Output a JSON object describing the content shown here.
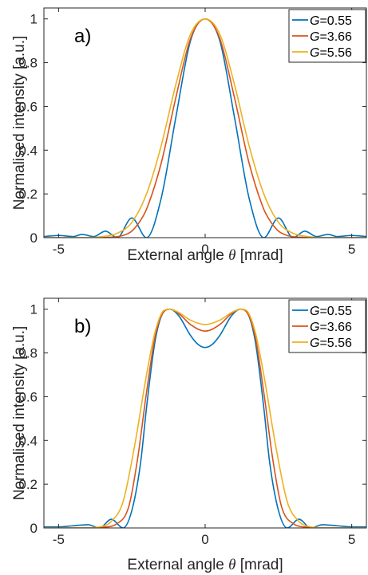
{
  "chart_data": [
    {
      "type": "line",
      "panel_label": "a)",
      "xlabel_parts": [
        "External angle ",
        "θ",
        " [mrad]"
      ],
      "ylabel": "Normalised intensity [a.u.]",
      "xlim": [
        -5.5,
        5.5
      ],
      "ylim": [
        0,
        1.05
      ],
      "xticks": [
        "-5",
        "0",
        "5"
      ],
      "yticks": [
        "0",
        "0.2",
        "0.4",
        "0.6",
        "0.8",
        "1"
      ],
      "legend_position": "top-right",
      "series": [
        {
          "name": "G=0.55",
          "legend_var": "G",
          "legend_val": "=0.55",
          "color": "#0072BD",
          "x": [
            -5.5,
            -5.0,
            -4.5,
            -4.2,
            -3.8,
            -3.4,
            -3.0,
            -2.5,
            -2.0,
            -1.5,
            -1.0,
            -0.5,
            0,
            0.5,
            1.0,
            1.5,
            2.0,
            2.5,
            3.0,
            3.4,
            3.8,
            4.2,
            4.5,
            5.0,
            5.5
          ],
          "y": [
            0.005,
            0.01,
            0.005,
            0.015,
            0.005,
            0.03,
            0.0,
            0.09,
            0.0,
            0.18,
            0.55,
            0.9,
            1.0,
            0.9,
            0.55,
            0.18,
            0.0,
            0.09,
            0.0,
            0.03,
            0.005,
            0.015,
            0.005,
            0.01,
            0.005
          ]
        },
        {
          "name": "G=3.66",
          "legend_var": "G",
          "legend_val": "=3.66",
          "color": "#D95319",
          "x": [
            -5.5,
            -4.0,
            -3.2,
            -2.8,
            -2.5,
            -2.2,
            -2.0,
            -1.5,
            -1.0,
            -0.5,
            0,
            0.5,
            1.0,
            1.5,
            2.0,
            2.2,
            2.5,
            2.8,
            3.2,
            4.0,
            5.5
          ],
          "y": [
            0.0,
            0.0,
            0.002,
            0.01,
            0.03,
            0.08,
            0.13,
            0.34,
            0.64,
            0.91,
            1.0,
            0.91,
            0.64,
            0.34,
            0.13,
            0.08,
            0.03,
            0.01,
            0.002,
            0.0,
            0.0
          ]
        },
        {
          "name": "G=5.56",
          "legend_var": "G",
          "legend_val": "=5.56",
          "color": "#EDB120",
          "x": [
            -5.5,
            -4.0,
            -3.5,
            -3.0,
            -2.5,
            -2.0,
            -1.5,
            -1.0,
            -0.5,
            0,
            0.5,
            1.0,
            1.5,
            2.0,
            2.5,
            3.0,
            3.5,
            4.0,
            5.5
          ],
          "y": [
            0.0,
            0.0,
            0.005,
            0.02,
            0.07,
            0.2,
            0.42,
            0.7,
            0.93,
            1.0,
            0.93,
            0.7,
            0.42,
            0.2,
            0.07,
            0.02,
            0.005,
            0.0,
            0.0
          ]
        }
      ]
    },
    {
      "type": "line",
      "panel_label": "b)",
      "xlabel_parts": [
        "External angle ",
        "θ",
        " [mrad]"
      ],
      "ylabel": "Normalised intensity [a.u.]",
      "xlim": [
        -5.5,
        5.5
      ],
      "ylim": [
        0,
        1.05
      ],
      "xticks": [
        "-5",
        "0",
        "5"
      ],
      "yticks": [
        "0",
        "0.2",
        "0.4",
        "0.6",
        "0.8",
        "1"
      ],
      "legend_position": "top-right",
      "series": [
        {
          "name": "G=0.55",
          "legend_var": "G",
          "legend_val": "=0.55",
          "color": "#0072BD",
          "x": [
            -5.5,
            -5.0,
            -4.5,
            -4.0,
            -3.6,
            -3.2,
            -2.8,
            -2.5,
            -2.2,
            -2.0,
            -1.7,
            -1.4,
            -1.2,
            -0.9,
            -0.5,
            -0.25,
            0,
            0.25,
            0.5,
            0.9,
            1.2,
            1.4,
            1.7,
            2.0,
            2.2,
            2.5,
            2.8,
            3.2,
            3.6,
            4.0,
            4.5,
            5.0,
            5.5
          ],
          "y": [
            0.005,
            0.005,
            0.01,
            0.015,
            0.0,
            0.04,
            0.0,
            0.08,
            0.3,
            0.55,
            0.86,
            0.99,
            1.0,
            0.97,
            0.88,
            0.84,
            0.825,
            0.84,
            0.88,
            0.97,
            1.0,
            0.99,
            0.86,
            0.55,
            0.3,
            0.08,
            0.0,
            0.04,
            0.0,
            0.015,
            0.01,
            0.005,
            0.005
          ]
        },
        {
          "name": "G=3.66",
          "legend_var": "G",
          "legend_val": "=3.66",
          "color": "#D95319",
          "x": [
            -5.5,
            -4.0,
            -3.5,
            -3.0,
            -2.6,
            -2.3,
            -2.0,
            -1.7,
            -1.4,
            -1.2,
            -0.9,
            -0.5,
            0,
            0.5,
            0.9,
            1.2,
            1.4,
            1.7,
            2.0,
            2.3,
            2.6,
            3.0,
            3.5,
            4.0,
            5.5
          ],
          "y": [
            0.0,
            0.0,
            0.003,
            0.02,
            0.1,
            0.32,
            0.62,
            0.88,
            0.99,
            1.0,
            0.98,
            0.93,
            0.9,
            0.93,
            0.98,
            1.0,
            0.99,
            0.88,
            0.62,
            0.32,
            0.1,
            0.02,
            0.003,
            0.0,
            0.0
          ]
        },
        {
          "name": "G=5.56",
          "legend_var": "G",
          "legend_val": "=5.56",
          "color": "#EDB120",
          "x": [
            -5.5,
            -4.2,
            -3.6,
            -3.2,
            -2.8,
            -2.4,
            -2.0,
            -1.7,
            -1.4,
            -1.2,
            -0.9,
            -0.5,
            0,
            0.5,
            0.9,
            1.2,
            1.4,
            1.7,
            2.0,
            2.4,
            2.8,
            3.2,
            3.6,
            4.2,
            5.5
          ],
          "y": [
            0.0,
            0.0,
            0.005,
            0.03,
            0.12,
            0.38,
            0.7,
            0.9,
            0.995,
            1.0,
            0.985,
            0.95,
            0.93,
            0.95,
            0.985,
            1.0,
            0.995,
            0.9,
            0.7,
            0.38,
            0.12,
            0.03,
            0.005,
            0.0,
            0.0
          ]
        }
      ]
    }
  ]
}
